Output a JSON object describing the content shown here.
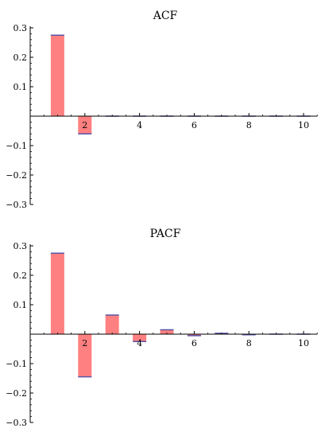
{
  "chart_data": [
    {
      "type": "bar",
      "title": "ACF",
      "x": [
        1,
        2,
        3,
        4,
        5,
        6,
        7,
        8,
        9,
        10
      ],
      "values": [
        0.275,
        -0.06,
        0.0,
        0.0,
        0.0,
        0.0,
        0.0,
        0.0,
        0.0,
        0.0
      ],
      "xlim": [
        0,
        10.5
      ],
      "ylim": [
        -0.3,
        0.3
      ],
      "xticks": [
        2,
        4,
        6,
        8,
        10
      ],
      "yticks": [
        -0.3,
        -0.2,
        -0.1,
        0.1,
        0.2,
        0.3
      ],
      "xtick_labels": [
        "2",
        "4",
        "6",
        "8",
        "10"
      ],
      "ytick_labels": [
        "−0.3",
        "−0.2",
        "−0.1",
        "0.1",
        "0.2",
        "0.3"
      ],
      "bar_color": "#ff8080",
      "bar_top_color": "#5a56a8",
      "grid": false
    },
    {
      "type": "bar",
      "title": "PACF",
      "x": [
        1,
        2,
        3,
        4,
        5,
        6,
        7,
        8,
        9,
        10
      ],
      "values": [
        0.275,
        -0.145,
        0.065,
        -0.025,
        0.015,
        -0.005,
        0.003,
        -0.002,
        0.0,
        0.0
      ],
      "xlim": [
        0,
        10.5
      ],
      "ylim": [
        -0.3,
        0.3
      ],
      "xticks": [
        2,
        4,
        6,
        8,
        10
      ],
      "yticks": [
        -0.3,
        -0.2,
        -0.1,
        0.1,
        0.2,
        0.3
      ],
      "xtick_labels": [
        "2",
        "4",
        "6",
        "8",
        "10"
      ],
      "ytick_labels": [
        "−0.3",
        "−0.2",
        "−0.1",
        "0.1",
        "0.2",
        "0.3"
      ],
      "bar_color": "#ff8080",
      "bar_top_color": "#5a56a8",
      "grid": false
    }
  ]
}
